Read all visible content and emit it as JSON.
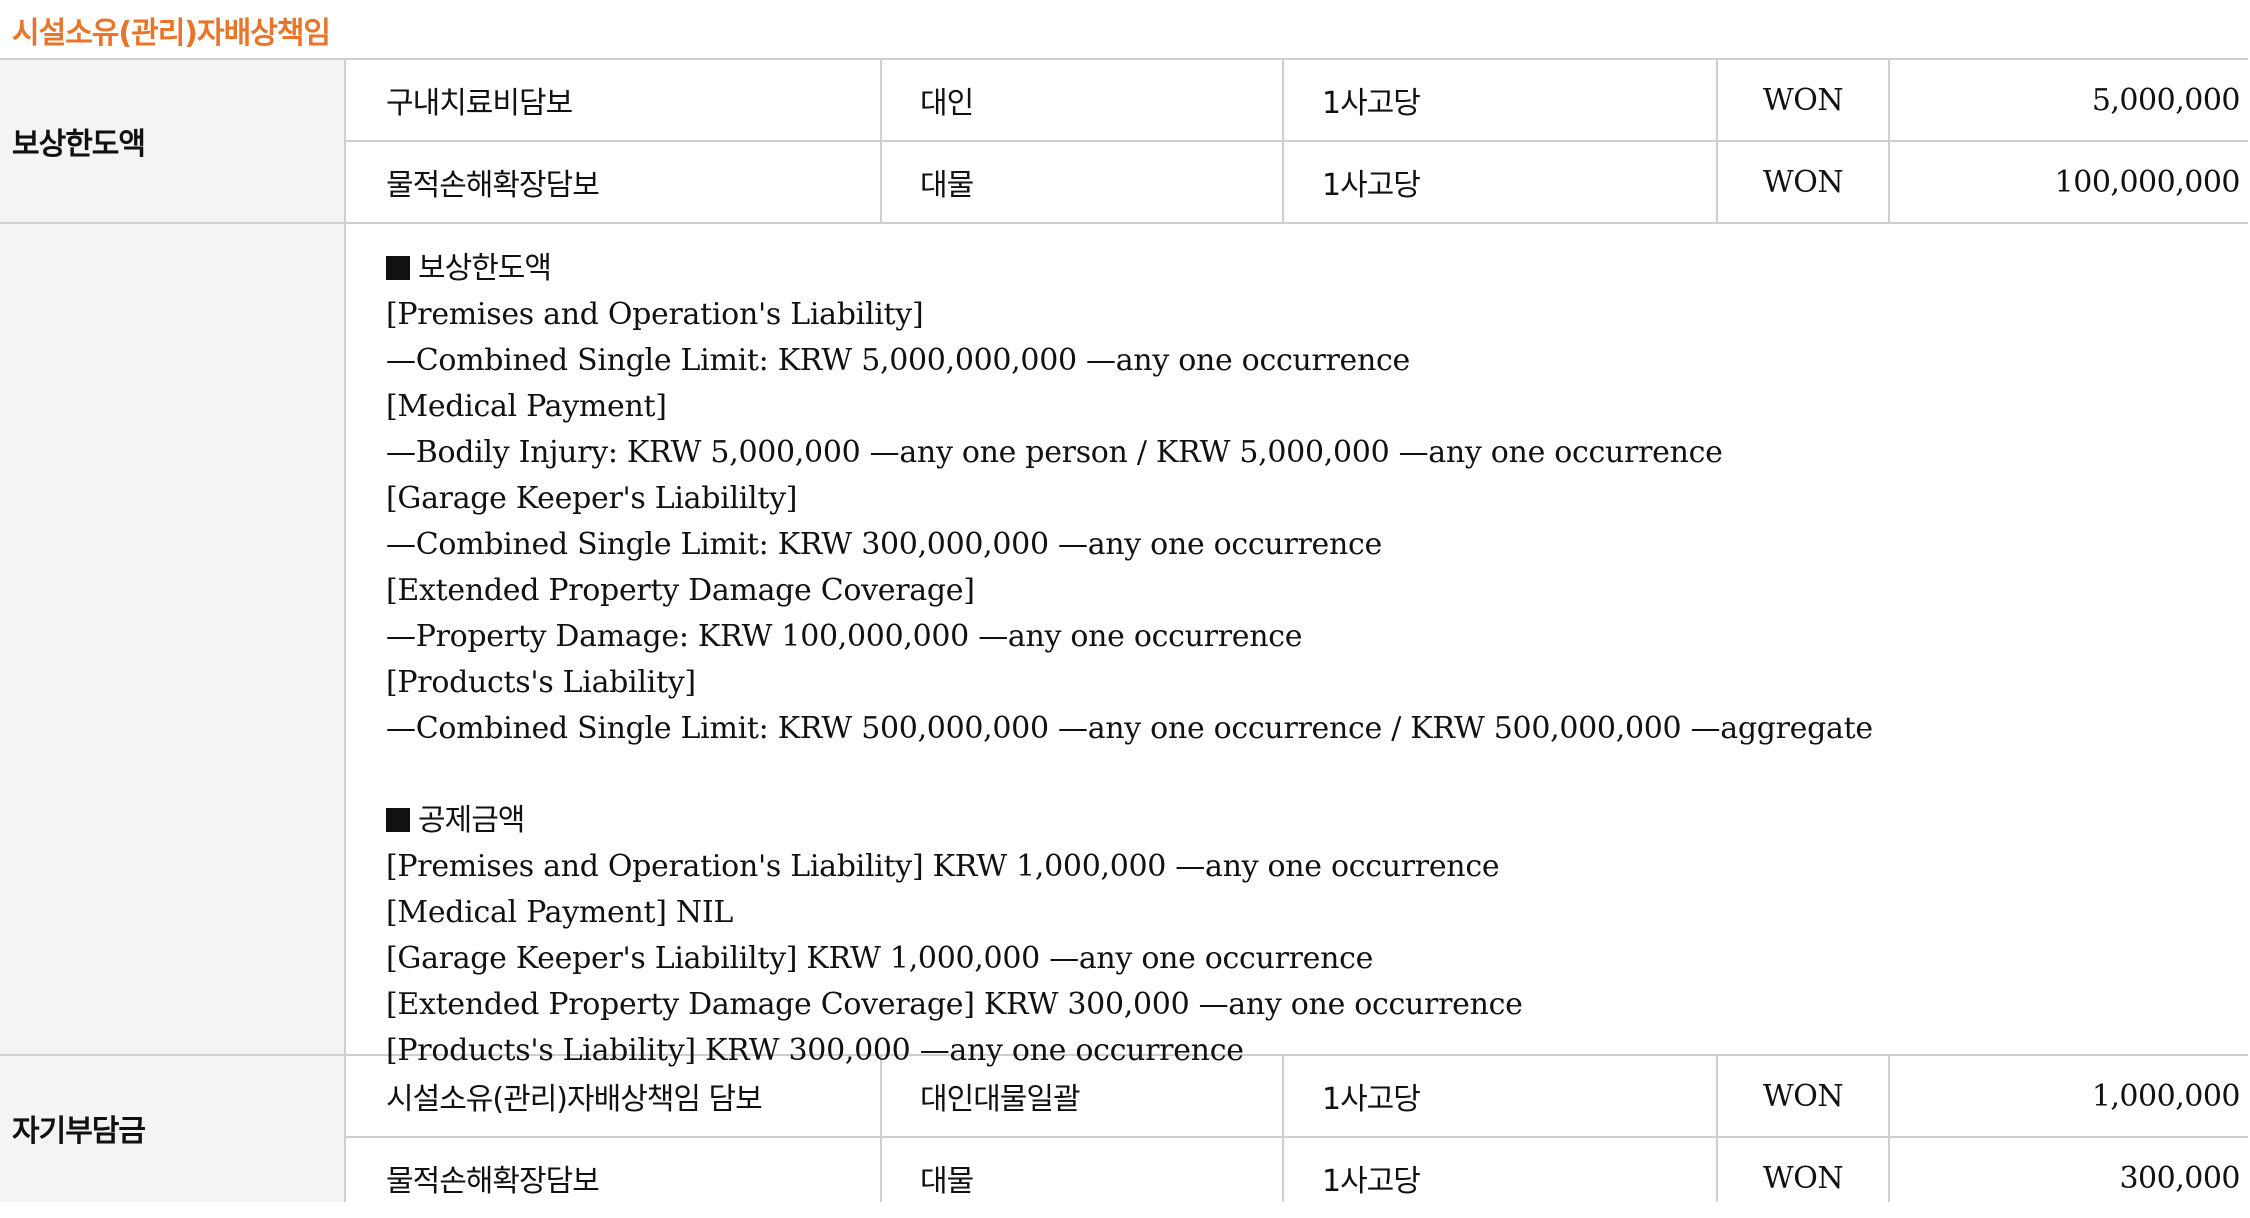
{
  "section_title": "시설소유(관리)자배상책임",
  "coverage_limit": {
    "label": "보상한도액",
    "rows": [
      {
        "item": "구내치료비담보",
        "target": "대인",
        "basis": "1사고당",
        "currency": "WON",
        "amount": "5,000,000"
      },
      {
        "item": "물적손해확장담보",
        "target": "대물",
        "basis": "1사고당",
        "currency": "WON",
        "amount": "100,000,000"
      }
    ]
  },
  "details": {
    "limit_heading": "보상한도액",
    "limit_lines": [
      "[Premises and Operation's Liability]",
      "—Combined Single Limit: KRW 5,000,000,000 —any one occurrence",
      "[Medical Payment]",
      "—Bodily Injury: KRW 5,000,000 —any one person / KRW 5,000,000 —any one occurrence",
      "[Garage Keeper's Liabililty]",
      "—Combined Single Limit: KRW 300,000,000 —any one occurrence",
      "[Extended Property Damage Coverage]",
      "—Property Damage: KRW 100,000,000 —any one occurrence",
      "[Products's Liability]",
      "—Combined Single Limit: KRW 500,000,000 —any one occurrence / KRW 500,000,000 —aggregate"
    ],
    "deductible_heading": "공제금액",
    "deductible_lines": [
      "[Premises and Operation's Liability] KRW 1,000,000 —any one occurrence",
      "[Medical Payment] NIL",
      "[Garage Keeper's Liabililty] KRW 1,000,000 —any one occurrence",
      "[Extended Property Damage Coverage] KRW 300,000 —any one occurrence",
      "[Products's Liability] KRW 300,000 —any one occurrence"
    ]
  },
  "deductible": {
    "label": "자기부담금",
    "rows": [
      {
        "item": "시설소유(관리)자배상책임 담보",
        "target": "대인대물일괄",
        "basis": "1사고당",
        "currency": "WON",
        "amount": "1,000,000"
      },
      {
        "item": "물적손해확장담보",
        "target": "대물",
        "basis": "1사고당",
        "currency": "WON",
        "amount": "300,000"
      }
    ]
  }
}
